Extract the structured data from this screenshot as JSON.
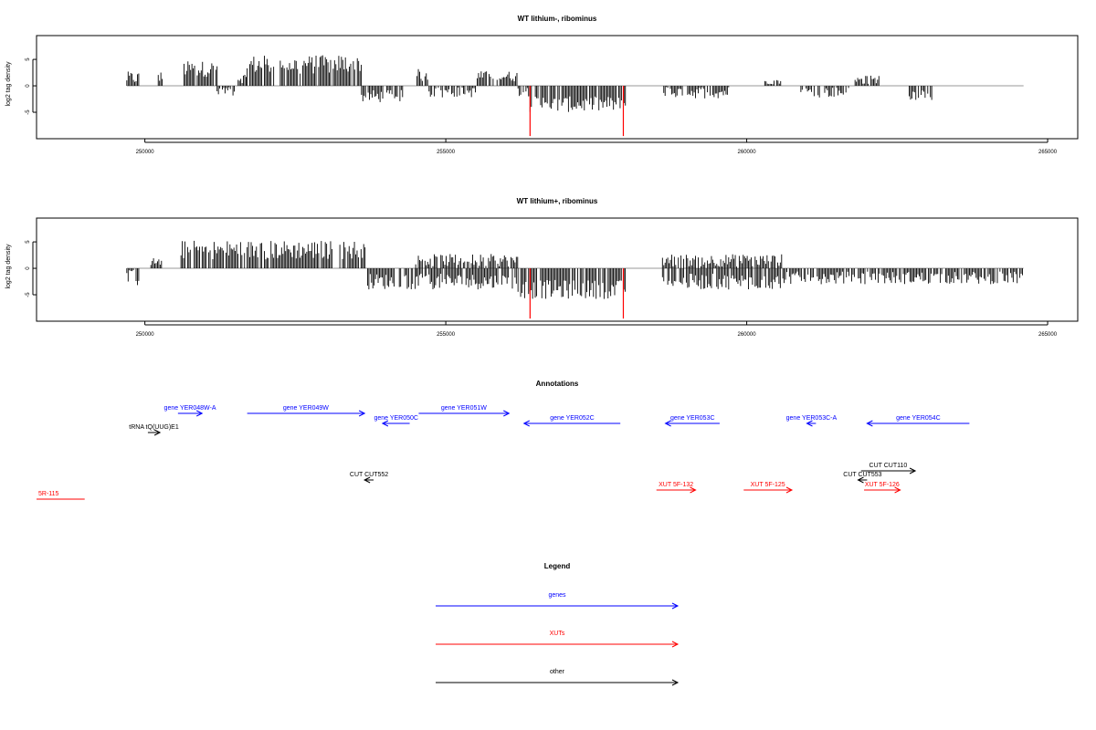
{
  "colors": {
    "genes": "#0000ff",
    "xuts": "#ff0000",
    "other": "#000000",
    "bars": "#000000",
    "highlight": "#ff0000",
    "baseline": "#999999"
  },
  "chart_data": [
    {
      "type": "bar",
      "title": "WT lithium-, ribominus",
      "ylabel": "log2 tag density",
      "xlim": [
        248200,
        265500
      ],
      "ylim": [
        -10,
        9.5
      ],
      "x_ticks": [
        250000,
        255000,
        260000,
        265000
      ],
      "y_ticks": [
        -5,
        0,
        5
      ],
      "baseline_range": [
        249700,
        264600
      ],
      "segments": [
        {
          "from": 249700,
          "to": 249900,
          "mean": 1.5,
          "amp": 1.2
        },
        {
          "from": 250200,
          "to": 250300,
          "mean": 1.5,
          "amp": 1.2
        },
        {
          "from": 250650,
          "to": 251200,
          "mean": 3.2,
          "amp": 1.5
        },
        {
          "from": 251200,
          "to": 251500,
          "mean": -1.0,
          "amp": 1.0
        },
        {
          "from": 251550,
          "to": 251700,
          "mean": 1.5,
          "amp": 1.0
        },
        {
          "from": 251700,
          "to": 253200,
          "mean": 4.0,
          "amp": 1.8
        },
        {
          "from": 253200,
          "to": 253600,
          "mean": 4.2,
          "amp": 1.8
        },
        {
          "from": 253600,
          "to": 254300,
          "mean": -2.0,
          "amp": 1.2
        },
        {
          "from": 254500,
          "to": 254700,
          "mean": 2.0,
          "amp": 1.2
        },
        {
          "from": 254700,
          "to": 255500,
          "mean": -1.2,
          "amp": 1.0
        },
        {
          "from": 255500,
          "to": 256200,
          "mean": 1.8,
          "amp": 1.0
        },
        {
          "from": 256200,
          "to": 256400,
          "mean": -1.0,
          "amp": 1.0
        },
        {
          "from": 256400,
          "to": 258000,
          "mean": -3.5,
          "amp": 1.5
        },
        {
          "from": 258600,
          "to": 259700,
          "mean": -1.2,
          "amp": 1.2
        },
        {
          "from": 260300,
          "to": 260600,
          "mean": 0.8,
          "amp": 0.5
        },
        {
          "from": 260900,
          "to": 261700,
          "mean": -1.2,
          "amp": 1.0
        },
        {
          "from": 261800,
          "to": 262200,
          "mean": 1.0,
          "amp": 1.0
        },
        {
          "from": 262700,
          "to": 263100,
          "mean": -1.5,
          "amp": 1.2
        }
      ],
      "highlights": [
        {
          "x": 256400,
          "value": -9.5
        },
        {
          "x": 257950,
          "value": -9.5
        }
      ]
    },
    {
      "type": "bar",
      "title": "WT lithium+, ribominus",
      "ylabel": "log2 tag density",
      "xlim": [
        248200,
        265500
      ],
      "ylim": [
        -10,
        9.5
      ],
      "x_ticks": [
        250000,
        255000,
        260000,
        265000
      ],
      "y_ticks": [
        -5,
        0,
        5
      ],
      "baseline_range": [
        249700,
        264600
      ],
      "segments": [
        {
          "from": 249700,
          "to": 249900,
          "mean": -1.5,
          "amp": 2.0
        },
        {
          "from": 250100,
          "to": 250300,
          "mean": 1.2,
          "amp": 0.8
        },
        {
          "from": 250600,
          "to": 253700,
          "mean": 3.5,
          "amp": 1.8
        },
        {
          "from": 253700,
          "to": 254500,
          "mean": -2.5,
          "amp": 1.5
        },
        {
          "from": 254500,
          "to": 256200,
          "mean": 1.5,
          "amp": 1.2
        },
        {
          "from": 254500,
          "to": 256200,
          "mean": -2.5,
          "amp": 1.5
        },
        {
          "from": 256200,
          "to": 258000,
          "mean": -4.0,
          "amp": 1.8
        },
        {
          "from": 258600,
          "to": 260600,
          "mean": 1.5,
          "amp": 1.2
        },
        {
          "from": 258600,
          "to": 260600,
          "mean": -2.5,
          "amp": 1.5
        },
        {
          "from": 260600,
          "to": 264600,
          "mean": -1.8,
          "amp": 1.2
        }
      ],
      "highlights": [
        {
          "x": 256400,
          "value": -9.5
        },
        {
          "x": 257950,
          "value": -9.5
        }
      ]
    }
  ],
  "annotations": {
    "title": "Annotations",
    "xlim": [
      248200,
      265500
    ],
    "features": [
      {
        "label": "gene YER048W-A",
        "category": "genes",
        "start": 250550,
        "end": 250950,
        "dir": "right",
        "row": 0
      },
      {
        "label": "gene YER049W",
        "category": "genes",
        "start": 251700,
        "end": 253650,
        "dir": "right",
        "row": 0
      },
      {
        "label": "gene YER050C",
        "category": "genes",
        "start": 253950,
        "end": 254400,
        "dir": "left",
        "row": 1
      },
      {
        "label": "gene YER051W",
        "category": "genes",
        "start": 254550,
        "end": 256050,
        "dir": "right",
        "row": 0
      },
      {
        "label": "gene YER052C",
        "category": "genes",
        "start": 256300,
        "end": 257900,
        "dir": "left",
        "row": 1
      },
      {
        "label": "gene YER053C",
        "category": "genes",
        "start": 258650,
        "end": 259550,
        "dir": "left",
        "row": 1
      },
      {
        "label": "gene YER053C-A",
        "category": "genes",
        "start": 261000,
        "end": 261150,
        "dir": "left",
        "row": 1
      },
      {
        "label": "gene YER054C",
        "category": "genes",
        "start": 262000,
        "end": 263700,
        "dir": "left",
        "row": 1
      },
      {
        "label": "tRNA tQ(UUG)E1",
        "category": "other",
        "start": 250050,
        "end": 250250,
        "dir": "right",
        "row": 2
      },
      {
        "label": "CUT CUT552",
        "category": "other",
        "start": 253650,
        "end": 253800,
        "dir": "left",
        "row": 4
      },
      {
        "label": "CUT CUT110",
        "category": "other",
        "start": 261900,
        "end": 262800,
        "dir": "right",
        "row": 3
      },
      {
        "label": "CUT CUT553",
        "category": "other",
        "start": 261850,
        "end": 262000,
        "dir": "left",
        "row": 4
      },
      {
        "label": "XUT 5F-132",
        "category": "xuts",
        "start": 258500,
        "end": 259150,
        "dir": "right",
        "row": 5
      },
      {
        "label": "XUT 5F-125",
        "category": "xuts",
        "start": 259950,
        "end": 260750,
        "dir": "right",
        "row": 5
      },
      {
        "label": "XUT 5F-126",
        "category": "xuts",
        "start": 261950,
        "end": 262550,
        "dir": "right",
        "row": 5
      },
      {
        "label": "5R-115",
        "category": "xuts",
        "start": 248200,
        "end": 249000,
        "dir": "none",
        "row": 6
      }
    ]
  },
  "legend": {
    "title": "Legend",
    "items": [
      {
        "label": "genes",
        "category": "genes"
      },
      {
        "label": "XUTs",
        "category": "xuts"
      },
      {
        "label": "other",
        "category": "other"
      }
    ]
  }
}
